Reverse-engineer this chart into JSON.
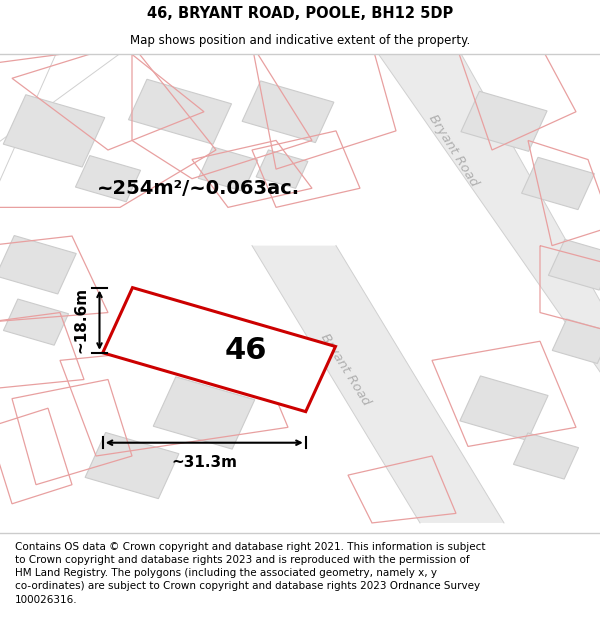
{
  "title": "46, BRYANT ROAD, POOLE, BH12 5DP",
  "subtitle": "Map shows position and indicative extent of the property.",
  "footer": "Contains OS data © Crown copyright and database right 2021. This information is subject\nto Crown copyright and database rights 2023 and is reproduced with the permission of\nHM Land Registry. The polygons (including the associated geometry, namely x, y\nco-ordinates) are subject to Crown copyright and database rights 2023 Ordnance Survey\n100026316.",
  "area_label": "~254m²/~0.063ac.",
  "width_label": "~31.3m",
  "height_label": "~18.6m",
  "number_label": "46",
  "bg_color": "#f7f7f7",
  "building_fill": "#e2e2e2",
  "building_stroke": "#cccccc",
  "pink_stroke": "#e8a0a0",
  "red_plot_edge": "#cc0000",
  "red_plot_fill": "#ffffff",
  "title_fontsize": 10.5,
  "subtitle_fontsize": 8.5,
  "footer_fontsize": 7.5,
  "area_fontsize": 14,
  "number_fontsize": 22,
  "dim_fontsize": 11,
  "road_label_color": "#b0b0b0",
  "road_label_fontsize": 9.5
}
